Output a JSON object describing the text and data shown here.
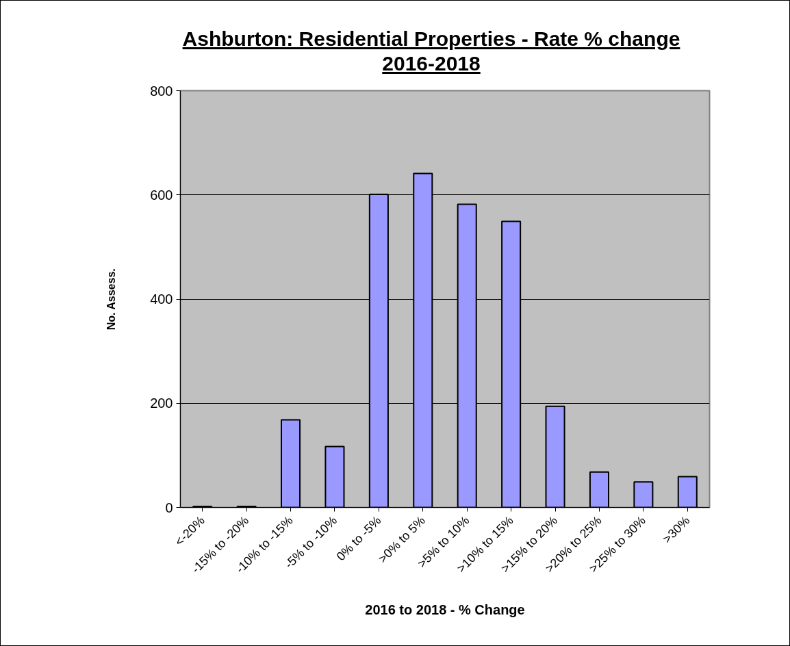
{
  "chart_data": {
    "type": "bar",
    "title": "Ashburton: Residential Properties - Rate % change 2016-2018",
    "xlabel": "2016 to 2018 - % Change",
    "ylabel": "No. Assess.",
    "categories": [
      "<-20%",
      "-15% to -20%",
      "-10% to -15%",
      "-5% to -10%",
      "0% to -5%",
      ">0% to 5%",
      ">5% to 10%",
      ">10% to 15%",
      ">15% to 20%",
      ">20% to 25%",
      ">25% to 30%",
      ">30%"
    ],
    "values": [
      2,
      2,
      168,
      117,
      601,
      641,
      582,
      549,
      194,
      68,
      49,
      59
    ],
    "color": "#9999ff",
    "ylim": [
      0,
      800
    ],
    "yticks": [
      0,
      200,
      400,
      600,
      800
    ],
    "grid": "y"
  }
}
